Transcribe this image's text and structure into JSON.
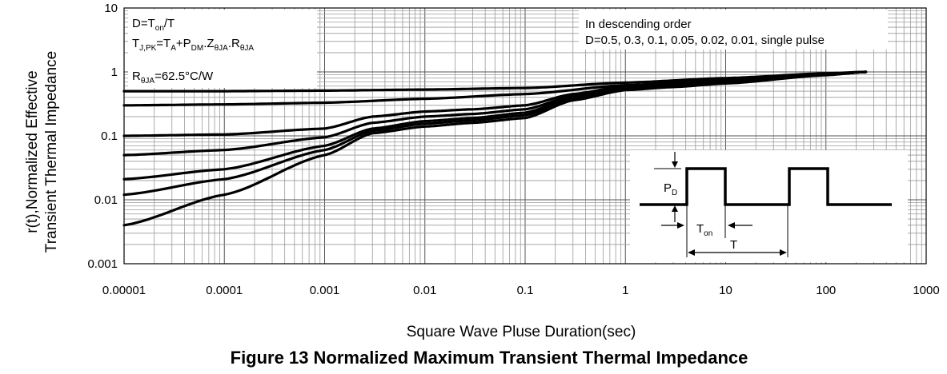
{
  "figure": {
    "caption": "Figure 13 Normalized Maximum Transient Thermal Impedance"
  },
  "chart_data": {
    "type": "line",
    "title": "",
    "xlabel": "Square Wave Pluse Duration(sec)",
    "ylabel": "r(t),Normalized Effective Transient Thermal Impedance",
    "ylabel_lines": [
      "r(t),Normalized Effective",
      "Transient Thermal Impedance"
    ],
    "x_scale": "log",
    "y_scale": "log",
    "xlim": [
      1e-05,
      1000
    ],
    "ylim": [
      0.001,
      10
    ],
    "grid": true,
    "x_ticks": [
      1e-05,
      0.0001,
      0.001,
      0.01,
      0.1,
      1,
      10,
      100,
      1000
    ],
    "x_tick_labels": [
      "0.00001",
      "0.0001",
      "0.001",
      "0.01",
      "0.1",
      "1",
      "10",
      "100",
      "1000"
    ],
    "y_ticks": [
      0.001,
      0.01,
      0.1,
      1,
      10
    ],
    "y_tick_labels": [
      "0.001",
      "0.01",
      "0.1",
      "1",
      "10"
    ],
    "series": [
      {
        "x": [
          1e-05,
          0.0001,
          0.001,
          0.01,
          0.1,
          1,
          10,
          100,
          250
        ],
        "values": [
          0.5,
          0.5,
          0.51,
          0.53,
          0.56,
          0.68,
          0.8,
          0.95,
          1.0
        ]
      },
      {
        "x": [
          1e-05,
          0.0001,
          0.001,
          0.01,
          0.1,
          1,
          10,
          100,
          250
        ],
        "values": [
          0.3,
          0.31,
          0.33,
          0.38,
          0.45,
          0.62,
          0.75,
          0.93,
          1.0
        ]
      },
      {
        "x": [
          1e-05,
          0.0001,
          0.001,
          0.003,
          0.01,
          0.03,
          0.1,
          0.3,
          1,
          3,
          10,
          100,
          250
        ],
        "values": [
          0.1,
          0.105,
          0.13,
          0.2,
          0.24,
          0.26,
          0.3,
          0.45,
          0.6,
          0.65,
          0.72,
          0.92,
          1.0
        ]
      },
      {
        "x": [
          1e-05,
          0.0001,
          0.001,
          0.003,
          0.01,
          0.03,
          0.1,
          0.3,
          1,
          3,
          10,
          100,
          250
        ],
        "values": [
          0.05,
          0.06,
          0.095,
          0.16,
          0.2,
          0.22,
          0.26,
          0.42,
          0.57,
          0.62,
          0.7,
          0.91,
          1.0
        ]
      },
      {
        "x": [
          1e-05,
          0.0001,
          0.001,
          0.003,
          0.01,
          0.03,
          0.1,
          0.3,
          1,
          3,
          10,
          100,
          250
        ],
        "values": [
          0.021,
          0.03,
          0.07,
          0.13,
          0.17,
          0.19,
          0.23,
          0.4,
          0.55,
          0.6,
          0.68,
          0.9,
          1.0
        ]
      },
      {
        "x": [
          1e-05,
          0.0001,
          0.001,
          0.003,
          0.01,
          0.03,
          0.1,
          0.3,
          1,
          3,
          10,
          100,
          250
        ],
        "values": [
          0.012,
          0.021,
          0.06,
          0.12,
          0.155,
          0.175,
          0.21,
          0.38,
          0.54,
          0.59,
          0.67,
          0.9,
          1.0
        ]
      },
      {
        "x": [
          1e-05,
          0.0001,
          0.001,
          0.003,
          0.01,
          0.03,
          0.1,
          0.3,
          1,
          3,
          10,
          100,
          250
        ],
        "values": [
          0.004,
          0.012,
          0.05,
          0.11,
          0.14,
          0.16,
          0.19,
          0.36,
          0.52,
          0.58,
          0.66,
          0.89,
          1.0
        ]
      }
    ]
  },
  "notes": {
    "formula_box": {
      "line1": {
        "prefix": "D=T",
        "sub": "on",
        "suffix": "/T"
      },
      "line2": {
        "t1": "T",
        "s1": "J,PK",
        "t2": "=T",
        "s2": "A",
        "t3": "+P",
        "s3": "DM",
        "t4": ".Z",
        "s4": "θJA",
        "t5": ".R",
        "s5": "θJA"
      },
      "line3": {
        "prefix": "R",
        "sub": "θJA",
        "suffix": "=62.5°C/W"
      }
    },
    "order_box": {
      "line1": "In descending order",
      "line2": "D=0.5, 0.3, 0.1, 0.05, 0.02, 0.01, single pulse"
    }
  },
  "inset": {
    "pd_label": "P",
    "pd_sub": "D",
    "ton_label": "T",
    "ton_sub": "on",
    "t_label": "T"
  }
}
